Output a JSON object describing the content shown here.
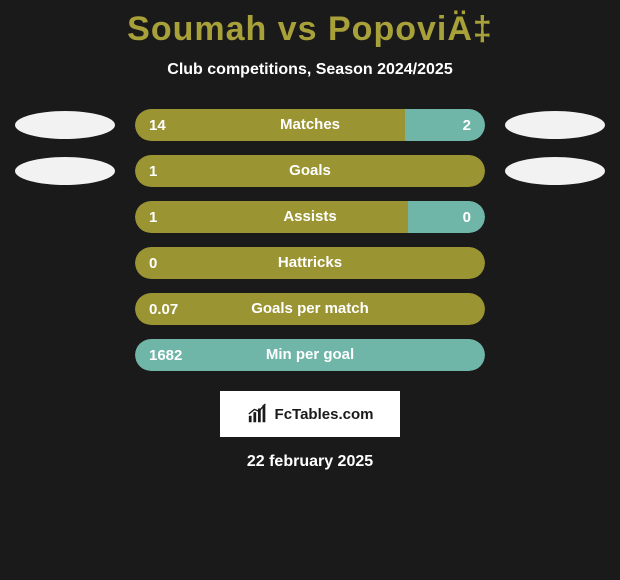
{
  "title_color": "#a8a13a",
  "title": "Soumah vs PopoviÄ‡",
  "subtitle": "Club competitions, Season 2024/2025",
  "avatar_color": "#f2f2f2",
  "colors": {
    "olive": "#9b9433",
    "teal": "#6fb5a8"
  },
  "rows": [
    {
      "label": "Matches",
      "left_value": "14",
      "right_value": "2",
      "left_pct": 77,
      "left_color": "#9b9433",
      "right_color": "#6fb5a8",
      "show_left_avatar": true,
      "show_right_avatar": true
    },
    {
      "label": "Goals",
      "left_value": "1",
      "right_value": "",
      "left_pct": 100,
      "left_color": "#9b9433",
      "right_color": "#6fb5a8",
      "show_left_avatar": true,
      "show_right_avatar": true
    },
    {
      "label": "Assists",
      "left_value": "1",
      "right_value": "0",
      "left_pct": 78,
      "left_color": "#9b9433",
      "right_color": "#6fb5a8",
      "show_left_avatar": false,
      "show_right_avatar": false
    },
    {
      "label": "Hattricks",
      "left_value": "0",
      "right_value": "",
      "left_pct": 100,
      "left_color": "#9b9433",
      "right_color": "#6fb5a8",
      "show_left_avatar": false,
      "show_right_avatar": false
    },
    {
      "label": "Goals per match",
      "left_value": "0.07",
      "right_value": "",
      "left_pct": 100,
      "left_color": "#9b9433",
      "right_color": "#6fb5a8",
      "show_left_avatar": false,
      "show_right_avatar": false
    },
    {
      "label": "Min per goal",
      "left_value": "1682",
      "right_value": "",
      "left_pct": 100,
      "left_color": "#6fb5a8",
      "right_color": "#9b9433",
      "show_left_avatar": false,
      "show_right_avatar": false
    }
  ],
  "logo_text": "FcTables.com",
  "date": "22 february 2025",
  "background": "#1a1a1a"
}
